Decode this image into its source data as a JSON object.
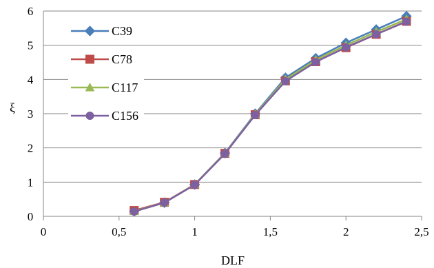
{
  "chart_data": {
    "type": "line",
    "xlabel": "DLF",
    "ylabel": "ξ",
    "xlim": [
      0,
      2.5
    ],
    "ylim": [
      0,
      6
    ],
    "x_ticks": [
      "0",
      "0,5",
      "1",
      "1,5",
      "2",
      "2,5"
    ],
    "y_ticks": [
      "0",
      "1",
      "2",
      "3",
      "4",
      "5",
      "6"
    ],
    "grid": "horizontal",
    "legend": "top-left",
    "x": [
      0.6,
      0.8,
      1.0,
      1.2,
      1.4,
      1.6,
      1.8,
      2.0,
      2.2,
      2.4
    ],
    "series": [
      {
        "name": "C39",
        "color": "#4a7ebb",
        "marker": "diamond",
        "values": [
          0.15,
          0.4,
          0.93,
          1.85,
          3.0,
          4.05,
          4.62,
          5.07,
          5.46,
          5.85
        ]
      },
      {
        "name": "C78",
        "color": "#be4b48",
        "marker": "square",
        "values": [
          0.17,
          0.41,
          0.93,
          1.84,
          2.97,
          3.96,
          4.52,
          4.93,
          5.32,
          5.7
        ]
      },
      {
        "name": "C117",
        "color": "#98b954",
        "marker": "triangle",
        "values": [
          0.15,
          0.4,
          0.93,
          1.84,
          2.98,
          4.0,
          4.57,
          5.0,
          5.39,
          5.76
        ]
      },
      {
        "name": "C156",
        "color": "#7d60a0",
        "marker": "circle",
        "values": [
          0.14,
          0.4,
          0.92,
          1.83,
          2.96,
          3.95,
          4.51,
          4.94,
          5.32,
          5.69
        ]
      }
    ]
  }
}
